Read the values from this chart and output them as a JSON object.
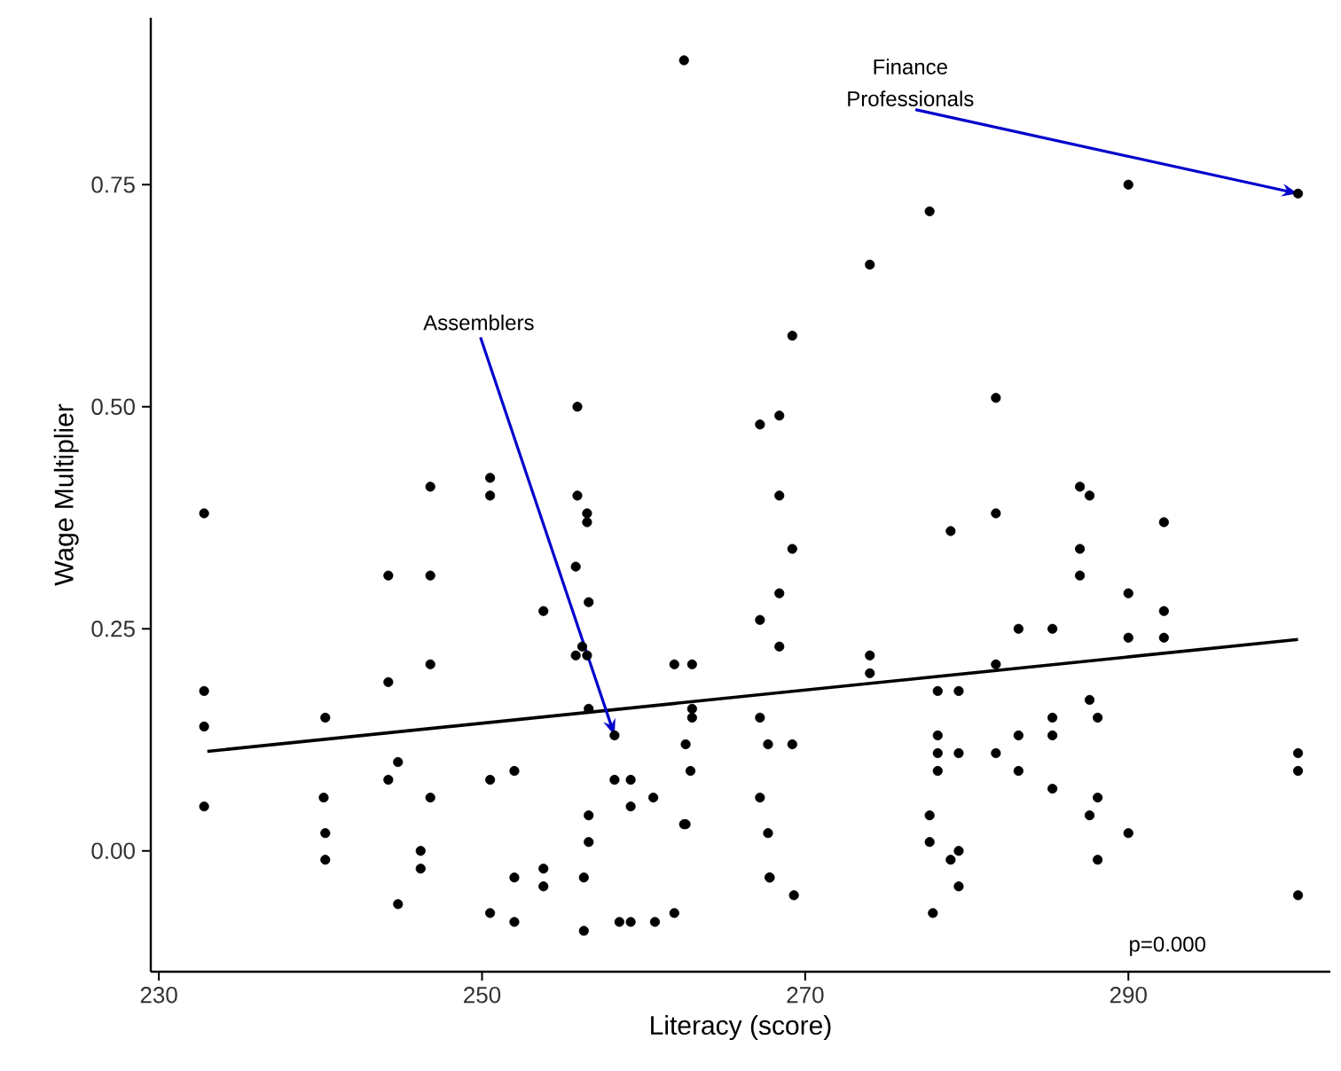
{
  "chart_data": {
    "type": "scatter",
    "xlabel": "Literacy (score)",
    "ylabel": "Wage Multiplier",
    "xlim": [
      229.5,
      302.5
    ],
    "ylim": [
      -0.136,
      0.938
    ],
    "xticks": [
      230,
      250,
      270,
      290
    ],
    "yticks": [
      {
        "value": 0,
        "label": "0.00"
      },
      {
        "value": 0.25,
        "label": "0.25"
      },
      {
        "value": 0.5,
        "label": "0.50"
      },
      {
        "value": 0.75,
        "label": "0.75"
      }
    ],
    "marker": "circle",
    "annotations": [
      {
        "text": "Finance Professionals",
        "x": 300.5,
        "y": 0.74
      },
      {
        "text": "Assemblers",
        "x": 258.2,
        "y": 0.13
      },
      "p=0.000"
    ],
    "series": [
      {
        "color": "#000000",
        "x": [
          232.8,
          232.8,
          232.8,
          232.8,
          240.3,
          240.2,
          240.3,
          240.3,
          244.2,
          244.2,
          244.2,
          244.8,
          244.8,
          246.2,
          246.2,
          246.8,
          246.8,
          246.8,
          246.8,
          250.5,
          250.5,
          250.5,
          250.5,
          252.0,
          252.0,
          252.0,
          253.8,
          253.8,
          253.8,
          255.9,
          255.9,
          256.5,
          256.5,
          255.8,
          256.6,
          256.2,
          255.8,
          256.5,
          256.6,
          256.6,
          256.6,
          256.3,
          256.3,
          258.2,
          258.2,
          259.2,
          260.6,
          259.2,
          258.5,
          259.2,
          260.7,
          261.9,
          261.9,
          263.0,
          263.0,
          263.0,
          262.6,
          262.9,
          262.6,
          262.5,
          262.5,
          267.2,
          268.4,
          268.4,
          269.2,
          267.2,
          268.4,
          268.4,
          269.2,
          267.2,
          267.7,
          269.2,
          267.2,
          267.7,
          267.8,
          267.8,
          269.3,
          274.0,
          274.0,
          274.0,
          277.7,
          279.0,
          278.2,
          279.5,
          278.2,
          278.2,
          278.2,
          279.5,
          277.7,
          277.7,
          279.0,
          279.5,
          279.5,
          277.9,
          281.8,
          281.8,
          281.8,
          281.8,
          283.2,
          283.2,
          283.2,
          285.3,
          285.3,
          285.3,
          285.3,
          287.0,
          287.6,
          287.0,
          287.0,
          287.6,
          287.6,
          288.1,
          288.1,
          288.1,
          290.0,
          290.0,
          290.0,
          290.0,
          292.2,
          292.2,
          292.2,
          300.5,
          300.5,
          300.5,
          300.5
        ],
        "values": [
          0.38,
          0.18,
          0.14,
          0.05,
          0.15,
          0.06,
          0.02,
          -0.01,
          0.31,
          0.19,
          0.08,
          0.1,
          -0.06,
          0.0,
          -0.02,
          0.41,
          0.31,
          0.21,
          0.06,
          0.42,
          0.4,
          0.08,
          -0.07,
          0.09,
          -0.03,
          -0.08,
          0.27,
          -0.02,
          -0.04,
          0.5,
          0.4,
          0.38,
          0.37,
          0.32,
          0.28,
          0.23,
          0.22,
          0.22,
          0.16,
          0.04,
          0.01,
          -0.03,
          -0.09,
          0.13,
          0.08,
          0.08,
          0.06,
          0.05,
          -0.08,
          -0.08,
          -0.08,
          -0.07,
          0.21,
          0.21,
          0.16,
          0.15,
          0.12,
          0.09,
          0.03,
          0.03,
          0.89,
          0.48,
          0.49,
          0.4,
          0.58,
          0.26,
          0.29,
          0.23,
          0.34,
          0.15,
          0.12,
          0.12,
          0.06,
          0.02,
          -0.03,
          -0.03,
          -0.05,
          0.66,
          0.22,
          0.2,
          0.72,
          0.36,
          0.18,
          0.18,
          0.13,
          0.11,
          0.09,
          0.11,
          0.04,
          0.01,
          -0.01,
          0.0,
          -0.04,
          -0.07,
          0.51,
          0.38,
          0.21,
          0.11,
          0.25,
          0.13,
          0.09,
          0.25,
          0.15,
          0.13,
          0.07,
          0.41,
          0.4,
          0.34,
          0.31,
          0.17,
          0.04,
          0.15,
          0.06,
          -0.01,
          0.75,
          0.29,
          0.24,
          0.02,
          0.37,
          0.27,
          0.24,
          0.74,
          0.11,
          0.09,
          -0.05
        ]
      },
      {
        "type": "line",
        "marker": "none",
        "color": "#000000",
        "x": [
          233,
          300.5
        ],
        "values": [
          0.112,
          0.238
        ]
      }
    ]
  }
}
